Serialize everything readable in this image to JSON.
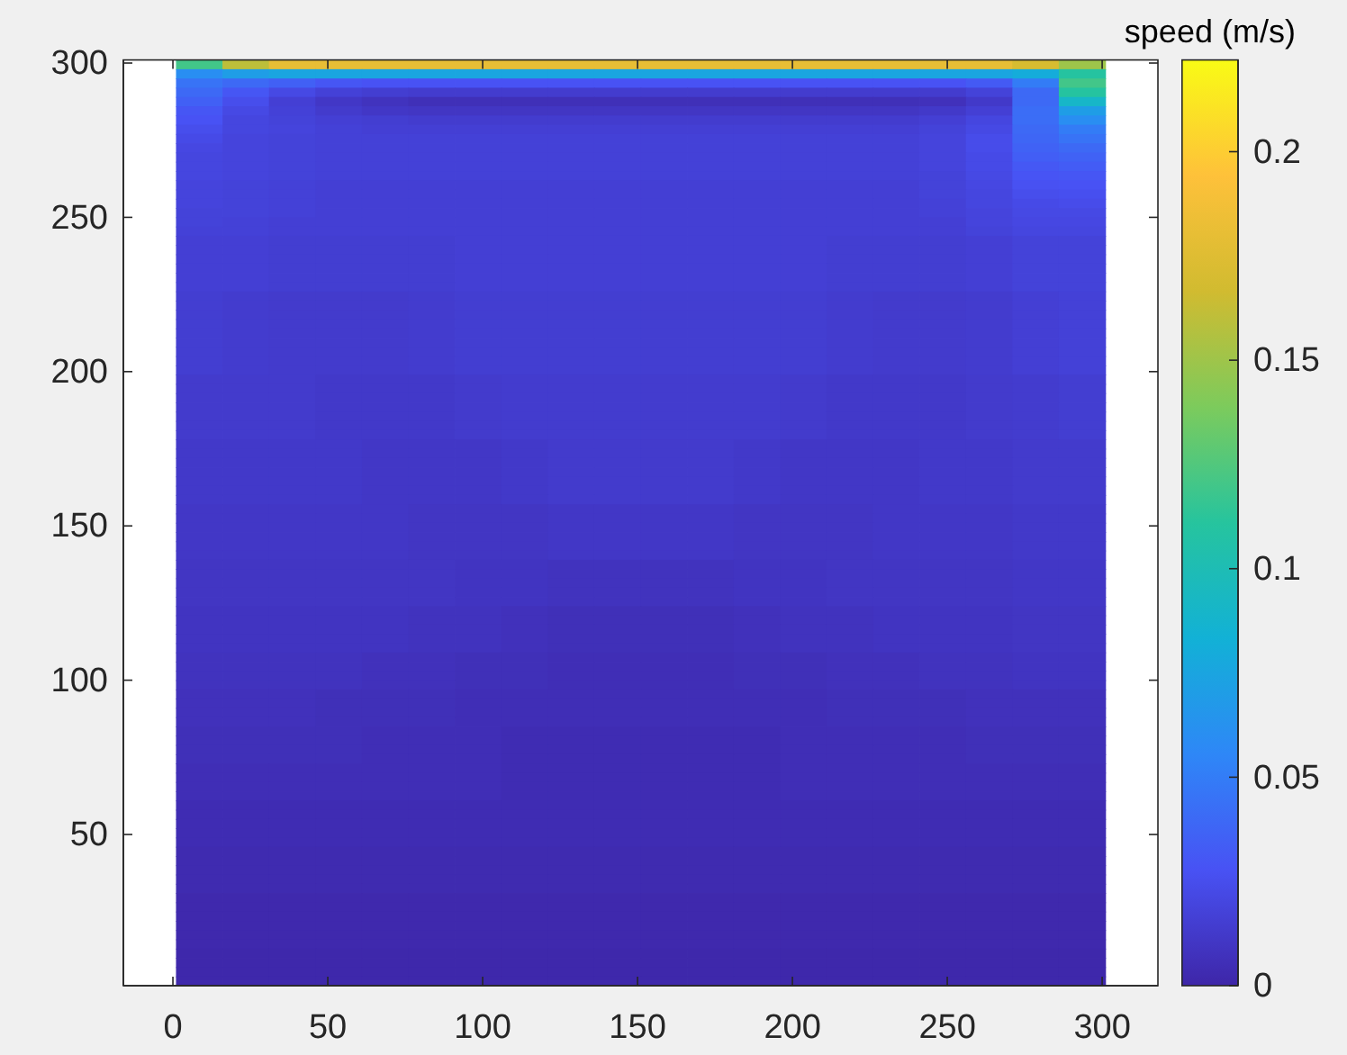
{
  "chart_data": {
    "type": "heatmap",
    "clabel": "speed (m/s)",
    "x": [
      8.5,
      23.5,
      38.5,
      53.5,
      68.5,
      83.5,
      98.5,
      113.5,
      128.5,
      143.5,
      158.5,
      173.5,
      188.5,
      203.5,
      218.5,
      233.5,
      248.5,
      263.5,
      278.5,
      293.5
    ],
    "cells": [
      [
        0.12,
        0.16,
        0.18,
        0.18,
        0.18,
        0.18,
        0.18,
        0.18,
        0.18,
        0.18,
        0.18,
        0.18,
        0.18,
        0.18,
        0.18,
        0.18,
        0.18,
        0.18,
        0.17,
        0.15
      ],
      [
        0.06,
        0.07,
        0.075,
        0.075,
        0.075,
        0.075,
        0.075,
        0.075,
        0.075,
        0.075,
        0.075,
        0.075,
        0.075,
        0.075,
        0.075,
        0.075,
        0.075,
        0.075,
        0.08,
        0.11
      ],
      [
        0.045,
        0.04,
        0.035,
        0.03,
        0.028,
        0.028,
        0.028,
        0.028,
        0.028,
        0.028,
        0.028,
        0.028,
        0.028,
        0.028,
        0.028,
        0.028,
        0.028,
        0.032,
        0.05,
        0.12
      ],
      [
        0.04,
        0.03,
        0.022,
        0.017,
        0.015,
        0.014,
        0.014,
        0.014,
        0.014,
        0.014,
        0.014,
        0.014,
        0.014,
        0.014,
        0.014,
        0.014,
        0.014,
        0.018,
        0.04,
        0.11
      ],
      [
        0.035,
        0.025,
        0.016,
        0.011,
        0.008,
        0.006,
        0.006,
        0.006,
        0.006,
        0.006,
        0.006,
        0.006,
        0.006,
        0.006,
        0.006,
        0.006,
        0.007,
        0.012,
        0.04,
        0.09
      ],
      [
        0.03,
        0.022,
        0.017,
        0.013,
        0.011,
        0.01,
        0.01,
        0.01,
        0.01,
        0.01,
        0.01,
        0.01,
        0.01,
        0.01,
        0.01,
        0.01,
        0.012,
        0.016,
        0.042,
        0.07
      ],
      [
        0.028,
        0.02,
        0.018,
        0.016,
        0.015,
        0.014,
        0.014,
        0.014,
        0.014,
        0.014,
        0.014,
        0.014,
        0.014,
        0.014,
        0.014,
        0.014,
        0.016,
        0.02,
        0.042,
        0.06
      ],
      [
        0.025,
        0.02,
        0.019,
        0.017,
        0.016,
        0.016,
        0.016,
        0.016,
        0.016,
        0.016,
        0.016,
        0.016,
        0.016,
        0.016,
        0.016,
        0.016,
        0.018,
        0.022,
        0.04,
        0.05
      ],
      [
        0.023,
        0.019,
        0.018,
        0.017,
        0.017,
        0.017,
        0.017,
        0.017,
        0.017,
        0.017,
        0.017,
        0.017,
        0.017,
        0.017,
        0.017,
        0.017,
        0.019,
        0.024,
        0.038,
        0.045
      ],
      [
        0.021,
        0.019,
        0.018,
        0.017,
        0.017,
        0.017,
        0.017,
        0.017,
        0.017,
        0.017,
        0.017,
        0.017,
        0.017,
        0.017,
        0.017,
        0.017,
        0.019,
        0.024,
        0.036,
        0.04
      ],
      [
        0.02,
        0.019,
        0.018,
        0.017,
        0.017,
        0.017,
        0.017,
        0.017,
        0.017,
        0.017,
        0.017,
        0.017,
        0.017,
        0.017,
        0.017,
        0.017,
        0.019,
        0.023,
        0.034,
        0.036
      ],
      [
        0.02,
        0.019,
        0.018,
        0.017,
        0.017,
        0.017,
        0.017,
        0.017,
        0.017,
        0.017,
        0.017,
        0.017,
        0.017,
        0.017,
        0.017,
        0.017,
        0.019,
        0.023,
        0.031,
        0.033
      ],
      [
        0.02,
        0.019,
        0.018,
        0.017,
        0.017,
        0.017,
        0.017,
        0.017,
        0.017,
        0.017,
        0.017,
        0.017,
        0.017,
        0.017,
        0.017,
        0.017,
        0.018,
        0.022,
        0.029,
        0.03
      ],
      [
        0.019,
        0.018,
        0.017,
        0.016,
        0.016,
        0.016,
        0.016,
        0.016,
        0.016,
        0.016,
        0.016,
        0.016,
        0.016,
        0.016,
        0.016,
        0.016,
        0.018,
        0.021,
        0.027,
        0.028
      ],
      [
        0.019,
        0.018,
        0.017,
        0.016,
        0.016,
        0.016,
        0.016,
        0.016,
        0.016,
        0.016,
        0.016,
        0.016,
        0.016,
        0.016,
        0.016,
        0.016,
        0.018,
        0.02,
        0.025,
        0.026
      ],
      [
        0.019,
        0.018,
        0.017,
        0.016,
        0.016,
        0.016,
        0.016,
        0.016,
        0.016,
        0.016,
        0.016,
        0.016,
        0.016,
        0.016,
        0.016,
        0.016,
        0.017,
        0.02,
        0.023,
        0.024
      ],
      [
        0.018,
        0.018,
        0.017,
        0.016,
        0.016,
        0.016,
        0.016,
        0.016,
        0.016,
        0.016,
        0.016,
        0.016,
        0.016,
        0.016,
        0.016,
        0.016,
        0.017,
        0.019,
        0.022,
        0.022
      ],
      [
        0.018,
        0.017,
        0.016,
        0.016,
        0.016,
        0.016,
        0.016,
        0.016,
        0.016,
        0.016,
        0.016,
        0.016,
        0.016,
        0.016,
        0.016,
        0.016,
        0.016,
        0.019,
        0.021,
        0.021
      ],
      [
        0.017,
        0.017,
        0.016,
        0.016,
        0.016,
        0.016,
        0.016,
        0.016,
        0.016,
        0.016,
        0.016,
        0.016,
        0.016,
        0.016,
        0.016,
        0.016,
        0.016,
        0.018,
        0.02,
        0.02
      ],
      [
        0.016,
        0.016,
        0.015,
        0.015,
        0.015,
        0.015,
        0.016,
        0.016,
        0.016,
        0.016,
        0.016,
        0.016,
        0.016,
        0.016,
        0.015,
        0.015,
        0.015,
        0.016,
        0.018,
        0.018
      ],
      [
        0.016,
        0.016,
        0.015,
        0.015,
        0.015,
        0.015,
        0.016,
        0.016,
        0.016,
        0.016,
        0.016,
        0.016,
        0.016,
        0.016,
        0.015,
        0.015,
        0.015,
        0.016,
        0.018,
        0.018
      ],
      [
        0.016,
        0.016,
        0.015,
        0.015,
        0.015,
        0.015,
        0.016,
        0.016,
        0.016,
        0.016,
        0.016,
        0.016,
        0.016,
        0.016,
        0.015,
        0.015,
        0.015,
        0.016,
        0.018,
        0.018
      ],
      [
        0.016,
        0.016,
        0.015,
        0.015,
        0.015,
        0.015,
        0.016,
        0.016,
        0.016,
        0.016,
        0.016,
        0.016,
        0.016,
        0.016,
        0.015,
        0.015,
        0.015,
        0.016,
        0.018,
        0.018
      ],
      [
        0.016,
        0.016,
        0.015,
        0.015,
        0.015,
        0.015,
        0.016,
        0.016,
        0.016,
        0.016,
        0.016,
        0.016,
        0.016,
        0.016,
        0.015,
        0.015,
        0.015,
        0.016,
        0.018,
        0.018
      ],
      [
        0.016,
        0.016,
        0.015,
        0.015,
        0.015,
        0.015,
        0.016,
        0.016,
        0.016,
        0.016,
        0.016,
        0.016,
        0.016,
        0.016,
        0.015,
        0.015,
        0.015,
        0.016,
        0.018,
        0.018
      ],
      [
        0.015,
        0.014,
        0.013,
        0.013,
        0.013,
        0.014,
        0.015,
        0.015,
        0.015,
        0.015,
        0.015,
        0.015,
        0.015,
        0.015,
        0.014,
        0.013,
        0.013,
        0.014,
        0.016,
        0.017
      ],
      [
        0.015,
        0.014,
        0.013,
        0.013,
        0.013,
        0.014,
        0.015,
        0.015,
        0.015,
        0.015,
        0.015,
        0.015,
        0.015,
        0.015,
        0.014,
        0.013,
        0.013,
        0.014,
        0.016,
        0.017
      ],
      [
        0.015,
        0.014,
        0.013,
        0.013,
        0.013,
        0.014,
        0.015,
        0.015,
        0.015,
        0.015,
        0.015,
        0.015,
        0.015,
        0.015,
        0.014,
        0.013,
        0.013,
        0.014,
        0.016,
        0.017
      ],
      [
        0.015,
        0.014,
        0.013,
        0.013,
        0.013,
        0.014,
        0.015,
        0.015,
        0.015,
        0.015,
        0.015,
        0.015,
        0.015,
        0.015,
        0.014,
        0.013,
        0.013,
        0.014,
        0.016,
        0.017
      ],
      [
        0.015,
        0.014,
        0.013,
        0.013,
        0.013,
        0.014,
        0.015,
        0.015,
        0.015,
        0.015,
        0.015,
        0.015,
        0.015,
        0.015,
        0.014,
        0.013,
        0.013,
        0.014,
        0.016,
        0.017
      ],
      [
        0.015,
        0.014,
        0.013,
        0.013,
        0.013,
        0.014,
        0.015,
        0.015,
        0.015,
        0.015,
        0.015,
        0.015,
        0.015,
        0.015,
        0.014,
        0.013,
        0.013,
        0.014,
        0.016,
        0.017
      ],
      [
        0.015,
        0.014,
        0.013,
        0.013,
        0.013,
        0.014,
        0.015,
        0.015,
        0.015,
        0.015,
        0.015,
        0.015,
        0.015,
        0.015,
        0.014,
        0.013,
        0.013,
        0.014,
        0.016,
        0.017
      ],
      [
        0.015,
        0.014,
        0.013,
        0.013,
        0.013,
        0.014,
        0.015,
        0.015,
        0.015,
        0.015,
        0.015,
        0.015,
        0.015,
        0.015,
        0.014,
        0.013,
        0.013,
        0.014,
        0.016,
        0.017
      ],
      [
        0.015,
        0.014,
        0.013,
        0.013,
        0.013,
        0.014,
        0.015,
        0.015,
        0.015,
        0.015,
        0.015,
        0.015,
        0.015,
        0.015,
        0.014,
        0.013,
        0.013,
        0.014,
        0.016,
        0.017
      ],
      [
        0.013,
        0.013,
        0.013,
        0.012,
        0.012,
        0.012,
        0.013,
        0.014,
        0.014,
        0.014,
        0.014,
        0.014,
        0.014,
        0.013,
        0.012,
        0.012,
        0.012,
        0.013,
        0.014,
        0.015
      ],
      [
        0.013,
        0.013,
        0.013,
        0.012,
        0.012,
        0.012,
        0.013,
        0.014,
        0.014,
        0.014,
        0.014,
        0.014,
        0.014,
        0.013,
        0.012,
        0.012,
        0.012,
        0.013,
        0.014,
        0.015
      ],
      [
        0.013,
        0.013,
        0.013,
        0.012,
        0.012,
        0.012,
        0.013,
        0.014,
        0.014,
        0.014,
        0.014,
        0.014,
        0.014,
        0.013,
        0.012,
        0.012,
        0.012,
        0.013,
        0.014,
        0.015
      ],
      [
        0.013,
        0.013,
        0.013,
        0.012,
        0.012,
        0.012,
        0.013,
        0.014,
        0.014,
        0.014,
        0.014,
        0.014,
        0.014,
        0.013,
        0.012,
        0.012,
        0.012,
        0.013,
        0.014,
        0.015
      ],
      [
        0.013,
        0.013,
        0.013,
        0.012,
        0.012,
        0.012,
        0.013,
        0.014,
        0.014,
        0.014,
        0.014,
        0.014,
        0.014,
        0.013,
        0.012,
        0.012,
        0.012,
        0.013,
        0.014,
        0.015
      ],
      [
        0.013,
        0.013,
        0.013,
        0.012,
        0.012,
        0.012,
        0.013,
        0.014,
        0.014,
        0.014,
        0.014,
        0.014,
        0.014,
        0.013,
        0.012,
        0.012,
        0.012,
        0.013,
        0.014,
        0.015
      ],
      [
        0.013,
        0.013,
        0.013,
        0.012,
        0.012,
        0.012,
        0.013,
        0.014,
        0.014,
        0.014,
        0.014,
        0.014,
        0.014,
        0.013,
        0.012,
        0.012,
        0.012,
        0.013,
        0.014,
        0.015
      ],
      [
        0.012,
        0.012,
        0.012,
        0.012,
        0.011,
        0.011,
        0.011,
        0.012,
        0.013,
        0.013,
        0.013,
        0.013,
        0.012,
        0.011,
        0.011,
        0.011,
        0.012,
        0.012,
        0.013,
        0.013
      ],
      [
        0.012,
        0.012,
        0.012,
        0.012,
        0.011,
        0.011,
        0.011,
        0.012,
        0.013,
        0.013,
        0.013,
        0.013,
        0.012,
        0.011,
        0.011,
        0.011,
        0.012,
        0.012,
        0.013,
        0.013
      ],
      [
        0.012,
        0.012,
        0.012,
        0.012,
        0.011,
        0.011,
        0.011,
        0.012,
        0.013,
        0.013,
        0.013,
        0.013,
        0.012,
        0.011,
        0.011,
        0.011,
        0.012,
        0.012,
        0.013,
        0.013
      ],
      [
        0.012,
        0.012,
        0.012,
        0.012,
        0.011,
        0.011,
        0.011,
        0.012,
        0.013,
        0.013,
        0.013,
        0.013,
        0.012,
        0.011,
        0.011,
        0.011,
        0.012,
        0.012,
        0.013,
        0.013
      ],
      [
        0.012,
        0.012,
        0.012,
        0.012,
        0.011,
        0.011,
        0.011,
        0.012,
        0.013,
        0.013,
        0.013,
        0.013,
        0.012,
        0.011,
        0.011,
        0.011,
        0.012,
        0.012,
        0.013,
        0.013
      ],
      [
        0.012,
        0.012,
        0.012,
        0.012,
        0.011,
        0.011,
        0.011,
        0.012,
        0.013,
        0.013,
        0.013,
        0.013,
        0.012,
        0.011,
        0.011,
        0.011,
        0.012,
        0.012,
        0.013,
        0.013
      ],
      [
        0.012,
        0.012,
        0.012,
        0.012,
        0.011,
        0.011,
        0.011,
        0.012,
        0.013,
        0.013,
        0.013,
        0.013,
        0.012,
        0.011,
        0.011,
        0.011,
        0.012,
        0.012,
        0.013,
        0.013
      ],
      [
        0.011,
        0.011,
        0.011,
        0.011,
        0.011,
        0.01,
        0.01,
        0.01,
        0.011,
        0.011,
        0.011,
        0.011,
        0.01,
        0.01,
        0.01,
        0.011,
        0.011,
        0.011,
        0.012,
        0.012
      ],
      [
        0.011,
        0.011,
        0.011,
        0.011,
        0.011,
        0.01,
        0.01,
        0.01,
        0.011,
        0.011,
        0.011,
        0.011,
        0.01,
        0.01,
        0.01,
        0.011,
        0.011,
        0.011,
        0.012,
        0.012
      ],
      [
        0.011,
        0.011,
        0.011,
        0.011,
        0.011,
        0.01,
        0.01,
        0.01,
        0.011,
        0.011,
        0.011,
        0.011,
        0.01,
        0.01,
        0.01,
        0.011,
        0.011,
        0.011,
        0.012,
        0.012
      ],
      [
        0.011,
        0.011,
        0.011,
        0.011,
        0.011,
        0.01,
        0.01,
        0.01,
        0.011,
        0.011,
        0.011,
        0.011,
        0.01,
        0.01,
        0.01,
        0.011,
        0.011,
        0.011,
        0.012,
        0.012
      ],
      [
        0.011,
        0.011,
        0.011,
        0.011,
        0.011,
        0.01,
        0.01,
        0.01,
        0.011,
        0.011,
        0.011,
        0.011,
        0.01,
        0.01,
        0.01,
        0.011,
        0.011,
        0.011,
        0.012,
        0.012
      ],
      [
        0.011,
        0.011,
        0.011,
        0.011,
        0.011,
        0.01,
        0.01,
        0.01,
        0.011,
        0.011,
        0.011,
        0.011,
        0.01,
        0.01,
        0.01,
        0.011,
        0.011,
        0.011,
        0.012,
        0.012
      ],
      [
        0.01,
        0.01,
        0.01,
        0.01,
        0.01,
        0.01,
        0.009,
        0.009,
        0.008,
        0.008,
        0.008,
        0.008,
        0.009,
        0.009,
        0.01,
        0.01,
        0.01,
        0.01,
        0.011,
        0.011
      ],
      [
        0.01,
        0.01,
        0.01,
        0.01,
        0.01,
        0.01,
        0.009,
        0.009,
        0.008,
        0.008,
        0.008,
        0.008,
        0.009,
        0.009,
        0.01,
        0.01,
        0.01,
        0.01,
        0.011,
        0.011
      ],
      [
        0.01,
        0.01,
        0.01,
        0.01,
        0.01,
        0.01,
        0.009,
        0.009,
        0.008,
        0.008,
        0.008,
        0.008,
        0.009,
        0.009,
        0.01,
        0.01,
        0.01,
        0.01,
        0.011,
        0.011
      ],
      [
        0.01,
        0.01,
        0.01,
        0.01,
        0.01,
        0.01,
        0.009,
        0.009,
        0.008,
        0.008,
        0.008,
        0.008,
        0.009,
        0.009,
        0.01,
        0.01,
        0.01,
        0.01,
        0.011,
        0.011
      ],
      [
        0.01,
        0.01,
        0.01,
        0.01,
        0.01,
        0.01,
        0.009,
        0.009,
        0.008,
        0.008,
        0.008,
        0.008,
        0.009,
        0.009,
        0.01,
        0.01,
        0.01,
        0.01,
        0.011,
        0.011
      ],
      [
        0.009,
        0.009,
        0.009,
        0.009,
        0.009,
        0.008,
        0.008,
        0.007,
        0.006,
        0.006,
        0.006,
        0.006,
        0.007,
        0.008,
        0.008,
        0.009,
        0.009,
        0.009,
        0.01,
        0.01
      ],
      [
        0.009,
        0.009,
        0.009,
        0.009,
        0.009,
        0.008,
        0.008,
        0.007,
        0.006,
        0.006,
        0.006,
        0.006,
        0.007,
        0.008,
        0.008,
        0.009,
        0.009,
        0.009,
        0.01,
        0.01
      ],
      [
        0.009,
        0.009,
        0.009,
        0.009,
        0.009,
        0.008,
        0.008,
        0.007,
        0.006,
        0.006,
        0.006,
        0.006,
        0.007,
        0.008,
        0.008,
        0.009,
        0.009,
        0.009,
        0.01,
        0.01
      ],
      [
        0.009,
        0.009,
        0.009,
        0.009,
        0.009,
        0.008,
        0.008,
        0.007,
        0.006,
        0.006,
        0.006,
        0.006,
        0.007,
        0.008,
        0.008,
        0.009,
        0.009,
        0.009,
        0.01,
        0.01
      ],
      [
        0.009,
        0.009,
        0.009,
        0.009,
        0.009,
        0.008,
        0.008,
        0.007,
        0.006,
        0.006,
        0.006,
        0.006,
        0.007,
        0.008,
        0.008,
        0.009,
        0.009,
        0.009,
        0.01,
        0.01
      ],
      [
        0.008,
        0.008,
        0.008,
        0.008,
        0.007,
        0.007,
        0.006,
        0.006,
        0.005,
        0.005,
        0.005,
        0.005,
        0.006,
        0.006,
        0.007,
        0.007,
        0.008,
        0.008,
        0.009,
        0.009
      ],
      [
        0.008,
        0.008,
        0.008,
        0.008,
        0.007,
        0.007,
        0.006,
        0.006,
        0.005,
        0.005,
        0.005,
        0.005,
        0.006,
        0.006,
        0.007,
        0.007,
        0.008,
        0.008,
        0.009,
        0.009
      ],
      [
        0.008,
        0.008,
        0.008,
        0.008,
        0.007,
        0.007,
        0.006,
        0.006,
        0.005,
        0.005,
        0.005,
        0.005,
        0.006,
        0.006,
        0.007,
        0.007,
        0.008,
        0.008,
        0.009,
        0.009
      ],
      [
        0.008,
        0.008,
        0.008,
        0.008,
        0.007,
        0.007,
        0.006,
        0.006,
        0.005,
        0.005,
        0.005,
        0.005,
        0.006,
        0.006,
        0.007,
        0.007,
        0.008,
        0.008,
        0.009,
        0.009
      ],
      [
        0.007,
        0.007,
        0.007,
        0.006,
        0.006,
        0.006,
        0.005,
        0.005,
        0.005,
        0.005,
        0.005,
        0.005,
        0.005,
        0.005,
        0.006,
        0.006,
        0.006,
        0.007,
        0.007,
        0.007
      ],
      [
        0.007,
        0.007,
        0.007,
        0.006,
        0.006,
        0.006,
        0.005,
        0.005,
        0.005,
        0.005,
        0.005,
        0.005,
        0.005,
        0.005,
        0.006,
        0.006,
        0.006,
        0.007,
        0.007,
        0.007
      ],
      [
        0.007,
        0.007,
        0.007,
        0.006,
        0.006,
        0.006,
        0.005,
        0.005,
        0.005,
        0.005,
        0.005,
        0.005,
        0.005,
        0.005,
        0.006,
        0.006,
        0.006,
        0.007,
        0.007,
        0.007
      ],
      [
        0.007,
        0.007,
        0.007,
        0.006,
        0.006,
        0.006,
        0.005,
        0.005,
        0.005,
        0.005,
        0.005,
        0.005,
        0.005,
        0.005,
        0.006,
        0.006,
        0.006,
        0.007,
        0.007,
        0.007
      ],
      [
        0.006,
        0.006,
        0.006,
        0.006,
        0.005,
        0.005,
        0.005,
        0.004,
        0.004,
        0.004,
        0.004,
        0.004,
        0.004,
        0.005,
        0.005,
        0.005,
        0.005,
        0.006,
        0.006,
        0.006
      ],
      [
        0.006,
        0.006,
        0.006,
        0.006,
        0.005,
        0.005,
        0.005,
        0.004,
        0.004,
        0.004,
        0.004,
        0.004,
        0.004,
        0.005,
        0.005,
        0.005,
        0.005,
        0.006,
        0.006,
        0.006
      ],
      [
        0.006,
        0.006,
        0.006,
        0.006,
        0.005,
        0.005,
        0.005,
        0.004,
        0.004,
        0.004,
        0.004,
        0.004,
        0.004,
        0.005,
        0.005,
        0.005,
        0.005,
        0.006,
        0.006,
        0.006
      ],
      [
        0.006,
        0.006,
        0.006,
        0.006,
        0.005,
        0.005,
        0.005,
        0.004,
        0.004,
        0.004,
        0.004,
        0.004,
        0.004,
        0.005,
        0.005,
        0.005,
        0.005,
        0.006,
        0.006,
        0.006
      ],
      [
        0.005,
        0.005,
        0.005,
        0.005,
        0.005,
        0.005,
        0.005,
        0.004,
        0.004,
        0.004,
        0.004,
        0.004,
        0.004,
        0.005,
        0.005,
        0.005,
        0.005,
        0.005,
        0.005,
        0.005
      ],
      [
        0.005,
        0.005,
        0.005,
        0.005,
        0.005,
        0.005,
        0.005,
        0.004,
        0.004,
        0.004,
        0.004,
        0.004,
        0.004,
        0.005,
        0.005,
        0.005,
        0.005,
        0.005,
        0.005,
        0.005
      ],
      [
        0.005,
        0.005,
        0.005,
        0.005,
        0.005,
        0.005,
        0.005,
        0.004,
        0.004,
        0.004,
        0.004,
        0.004,
        0.004,
        0.005,
        0.005,
        0.005,
        0.005,
        0.005,
        0.005,
        0.005
      ],
      [
        0.005,
        0.005,
        0.005,
        0.005,
        0.005,
        0.005,
        0.005,
        0.004,
        0.004,
        0.004,
        0.004,
        0.004,
        0.004,
        0.005,
        0.005,
        0.005,
        0.005,
        0.005,
        0.005,
        0.005
      ],
      [
        0.004,
        0.004,
        0.004,
        0.004,
        0.004,
        0.004,
        0.004,
        0.004,
        0.004,
        0.004,
        0.004,
        0.004,
        0.004,
        0.004,
        0.004,
        0.004,
        0.004,
        0.004,
        0.004,
        0.004
      ],
      [
        0.004,
        0.004,
        0.004,
        0.004,
        0.004,
        0.004,
        0.004,
        0.004,
        0.004,
        0.004,
        0.004,
        0.004,
        0.004,
        0.004,
        0.004,
        0.004,
        0.004,
        0.004,
        0.004,
        0.004
      ],
      [
        0.004,
        0.004,
        0.004,
        0.004,
        0.004,
        0.004,
        0.004,
        0.004,
        0.004,
        0.004,
        0.004,
        0.004,
        0.004,
        0.004,
        0.004,
        0.004,
        0.004,
        0.004,
        0.004,
        0.004
      ],
      [
        0.004,
        0.004,
        0.004,
        0.004,
        0.004,
        0.004,
        0.004,
        0.004,
        0.004,
        0.004,
        0.004,
        0.004,
        0.004,
        0.004,
        0.004,
        0.004,
        0.004,
        0.004,
        0.004,
        0.004
      ],
      [
        0.004,
        0.004,
        0.004,
        0.004,
        0.004,
        0.004,
        0.004,
        0.004,
        0.004,
        0.004,
        0.004,
        0.004,
        0.004,
        0.004,
        0.004,
        0.004,
        0.004,
        0.004,
        0.004,
        0.004
      ],
      [
        0.003,
        0.003,
        0.003,
        0.003,
        0.003,
        0.003,
        0.003,
        0.003,
        0.003,
        0.003,
        0.003,
        0.003,
        0.003,
        0.003,
        0.003,
        0.003,
        0.003,
        0.003,
        0.003,
        0.003
      ],
      [
        0.003,
        0.003,
        0.003,
        0.003,
        0.003,
        0.003,
        0.003,
        0.003,
        0.003,
        0.003,
        0.003,
        0.003,
        0.003,
        0.003,
        0.003,
        0.003,
        0.003,
        0.003,
        0.003,
        0.003
      ],
      [
        0.003,
        0.003,
        0.003,
        0.003,
        0.003,
        0.003,
        0.003,
        0.003,
        0.003,
        0.003,
        0.003,
        0.003,
        0.003,
        0.003,
        0.003,
        0.003,
        0.003,
        0.003,
        0.003,
        0.003
      ],
      [
        0.003,
        0.003,
        0.003,
        0.003,
        0.003,
        0.003,
        0.003,
        0.003,
        0.003,
        0.003,
        0.003,
        0.003,
        0.003,
        0.003,
        0.003,
        0.003,
        0.003,
        0.003,
        0.003,
        0.003
      ],
      [
        0.003,
        0.003,
        0.003,
        0.003,
        0.003,
        0.003,
        0.003,
        0.003,
        0.003,
        0.003,
        0.003,
        0.003,
        0.003,
        0.003,
        0.003,
        0.003,
        0.003,
        0.003,
        0.003,
        0.003
      ],
      [
        0.002,
        0.002,
        0.002,
        0.002,
        0.002,
        0.002,
        0.002,
        0.002,
        0.002,
        0.002,
        0.002,
        0.002,
        0.002,
        0.002,
        0.002,
        0.002,
        0.002,
        0.002,
        0.002,
        0.002
      ],
      [
        0.002,
        0.002,
        0.002,
        0.002,
        0.002,
        0.002,
        0.002,
        0.002,
        0.002,
        0.002,
        0.002,
        0.002,
        0.002,
        0.002,
        0.002,
        0.002,
        0.002,
        0.002,
        0.002,
        0.002
      ],
      [
        0.002,
        0.002,
        0.002,
        0.002,
        0.002,
        0.002,
        0.002,
        0.002,
        0.002,
        0.002,
        0.002,
        0.002,
        0.002,
        0.002,
        0.002,
        0.002,
        0.002,
        0.002,
        0.002,
        0.002
      ],
      [
        0.002,
        0.002,
        0.002,
        0.002,
        0.002,
        0.002,
        0.002,
        0.002,
        0.002,
        0.002,
        0.002,
        0.002,
        0.002,
        0.002,
        0.002,
        0.002,
        0.002,
        0.002,
        0.002,
        0.002
      ],
      [
        0.002,
        0.002,
        0.002,
        0.002,
        0.002,
        0.002,
        0.002,
        0.002,
        0.002,
        0.002,
        0.002,
        0.002,
        0.002,
        0.002,
        0.002,
        0.002,
        0.002,
        0.002,
        0.002,
        0.002
      ],
      [
        0.002,
        0.002,
        0.002,
        0.002,
        0.002,
        0.002,
        0.002,
        0.002,
        0.002,
        0.002,
        0.002,
        0.002,
        0.002,
        0.002,
        0.002,
        0.002,
        0.002,
        0.002,
        0.002,
        0.002
      ],
      [
        0.001,
        0.001,
        0.001,
        0.001,
        0.001,
        0.001,
        0.001,
        0.001,
        0.001,
        0.001,
        0.001,
        0.001,
        0.001,
        0.001,
        0.001,
        0.001,
        0.001,
        0.001,
        0.001,
        0.001
      ],
      [
        0.001,
        0.001,
        0.001,
        0.001,
        0.001,
        0.001,
        0.001,
        0.001,
        0.001,
        0.001,
        0.001,
        0.001,
        0.001,
        0.001,
        0.001,
        0.001,
        0.001,
        0.001,
        0.001,
        0.001
      ],
      [
        0.001,
        0.001,
        0.001,
        0.001,
        0.001,
        0.001,
        0.001,
        0.001,
        0.001,
        0.001,
        0.001,
        0.001,
        0.001,
        0.001,
        0.001,
        0.001,
        0.001,
        0.001,
        0.001,
        0.001
      ],
      [
        0.001,
        0.001,
        0.001,
        0.001,
        0.001,
        0.001,
        0.001,
        0.001,
        0.001,
        0.001,
        0.001,
        0.001,
        0.001,
        0.001,
        0.001,
        0.001,
        0.001,
        0.001,
        0.001,
        0.001
      ]
    ],
    "xlim": [
      -16,
      318
    ],
    "xticks": [
      0,
      50,
      100,
      150,
      200,
      250,
      300
    ],
    "ylim": [
      1,
      301
    ],
    "yticks": [
      50,
      100,
      150,
      200,
      250,
      300
    ],
    "clim": [
      0,
      0.222
    ],
    "cticks": [
      0,
      0.05,
      0.1,
      0.15,
      0.2
    ]
  }
}
